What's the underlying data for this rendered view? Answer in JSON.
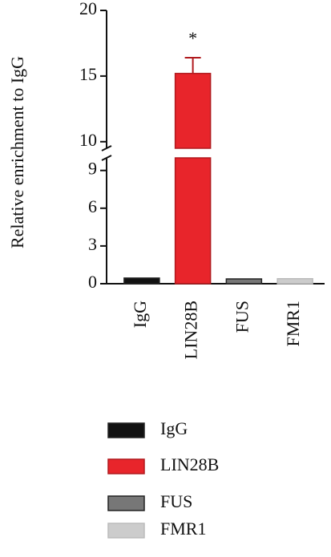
{
  "chart_data": {
    "type": "bar",
    "y_label": "Relative enrichment to IgG",
    "categories": [
      "IgG",
      "LIN28B",
      "FUS",
      "FMR1"
    ],
    "values": [
      0.45,
      15.2,
      0.38,
      0.4
    ],
    "errors": [
      null,
      1.2,
      null,
      null
    ],
    "colors": [
      "#111111",
      "#e8252b",
      "#777777",
      "#cccccc"
    ],
    "annotation": "*",
    "broken_axis": true,
    "segments": [
      {
        "ylim": [
          0,
          10
        ],
        "yticks": [
          0,
          3,
          6,
          9
        ]
      },
      {
        "ylim": [
          9.5,
          20
        ],
        "yticks": [
          10,
          15,
          20
        ]
      }
    ],
    "legend": true
  }
}
